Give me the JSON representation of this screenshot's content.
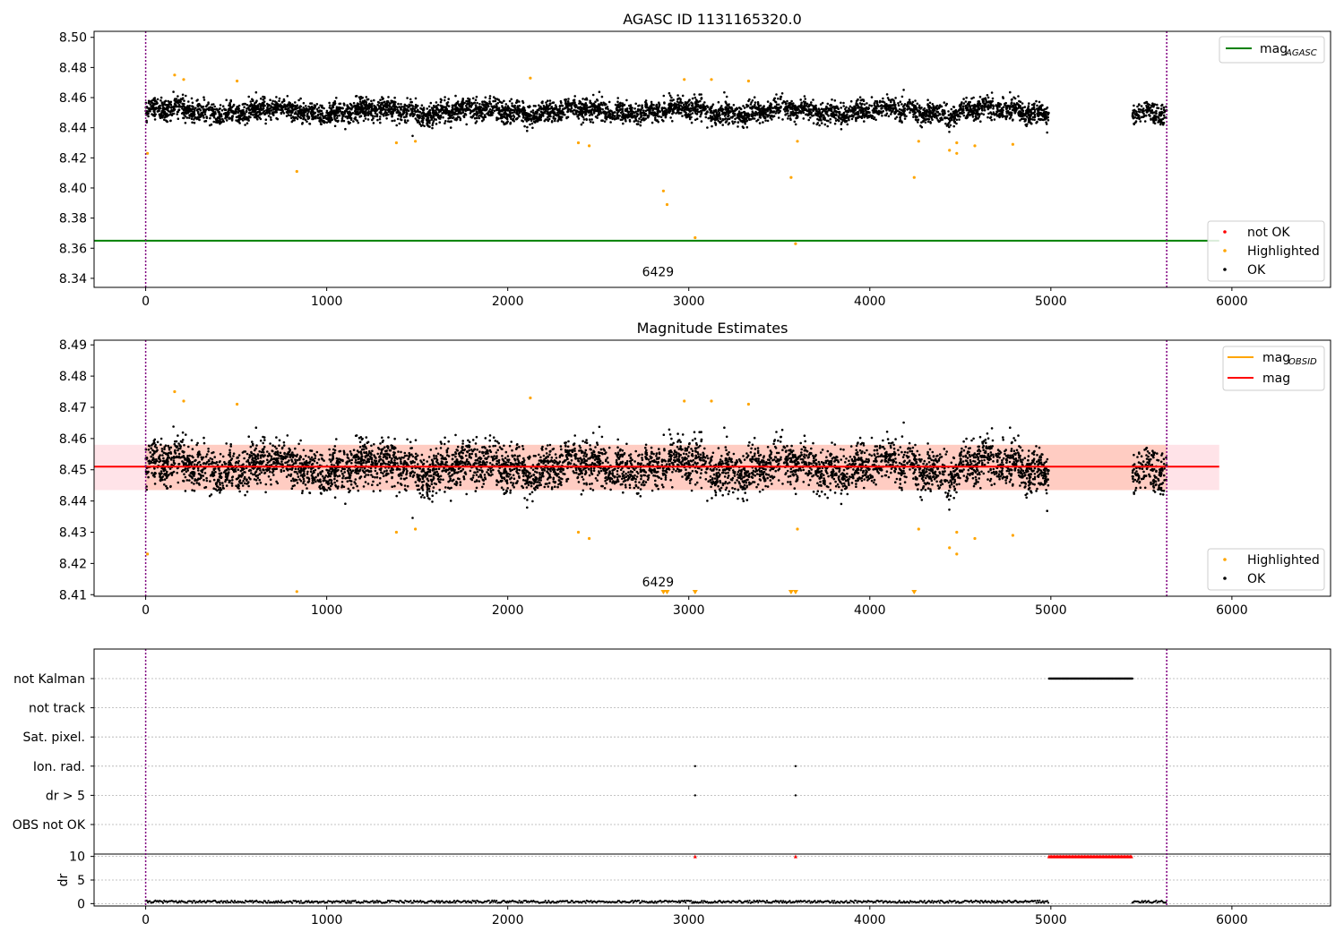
{
  "chart_data": [
    {
      "type": "scatter",
      "title": "AGASC ID 1131165320.0",
      "xlim": [
        -285,
        6545
      ],
      "ylim": [
        8.334,
        8.504
      ],
      "xticks": [
        0,
        1000,
        2000,
        3000,
        4000,
        5000,
        6000
      ],
      "yticks": [
        "8.34",
        "8.36",
        "8.38",
        "8.40",
        "8.42",
        "8.44",
        "8.46",
        "8.48",
        "8.50"
      ],
      "vlines": [
        0,
        5640
      ],
      "agasc_mag": 8.365,
      "annotation": {
        "text": "6429",
        "x": 2830,
        "y": 8.336
      },
      "ok_band": {
        "x_start": 0,
        "x_end": 4990,
        "x2_start": 5450,
        "x2_end": 5640,
        "center": 8.451,
        "spread": 0.009
      },
      "highlighted": [
        [
          10,
          8.423
        ],
        [
          160,
          8.475
        ],
        [
          210,
          8.472
        ],
        [
          505,
          8.471
        ],
        [
          835,
          8.411
        ],
        [
          1385,
          8.43
        ],
        [
          1490,
          8.431
        ],
        [
          2125,
          8.473
        ],
        [
          2390,
          8.43
        ],
        [
          2450,
          8.428
        ],
        [
          2860,
          8.398
        ],
        [
          2880,
          8.389
        ],
        [
          2975,
          8.472
        ],
        [
          3035,
          8.367
        ],
        [
          3125,
          8.472
        ],
        [
          3330,
          8.471
        ],
        [
          3565,
          8.407
        ],
        [
          3590,
          8.363
        ],
        [
          3600,
          8.431
        ],
        [
          4245,
          8.407
        ],
        [
          4270,
          8.431
        ],
        [
          4440,
          8.425
        ],
        [
          4480,
          8.423
        ],
        [
          4480,
          8.43
        ],
        [
          4580,
          8.428
        ],
        [
          4790,
          8.429
        ]
      ],
      "legend": {
        "lines": [
          {
            "label": "mag",
            "sub": "AGASC",
            "color": "#008000"
          }
        ],
        "points": [
          {
            "label": "not OK",
            "color": "#ff0000"
          },
          {
            "label": "Highlighted",
            "color": "#ffa500"
          },
          {
            "label": "OK",
            "color": "#000000"
          }
        ]
      }
    },
    {
      "type": "scatter",
      "title": "Magnitude Estimates",
      "xlim": [
        -285,
        6545
      ],
      "ylim": [
        8.4095,
        8.4915
      ],
      "xticks": [
        0,
        1000,
        2000,
        3000,
        4000,
        5000,
        6000
      ],
      "yticks": [
        "8.41",
        "8.42",
        "8.43",
        "8.44",
        "8.45",
        "8.46",
        "8.47",
        "8.48",
        "8.49"
      ],
      "vlines": [
        0,
        5640
      ],
      "mag": 8.451,
      "mag_band": [
        8.4435,
        8.458
      ],
      "obsid_band": {
        "x_start": 0,
        "x_end": 5640,
        "range": [
          8.4435,
          8.458
        ]
      },
      "annotation": {
        "text": "6429",
        "x": 2830,
        "y": 8.411
      },
      "ok_band": {
        "x_start": 0,
        "x_end": 4990,
        "x2_start": 5450,
        "x2_end": 5640,
        "center": 8.451,
        "spread": 0.009
      },
      "highlighted": [
        [
          10,
          8.423
        ],
        [
          160,
          8.475
        ],
        [
          210,
          8.472
        ],
        [
          505,
          8.471
        ],
        [
          835,
          8.411
        ],
        [
          1385,
          8.43
        ],
        [
          1490,
          8.431
        ],
        [
          2125,
          8.473
        ],
        [
          2390,
          8.43
        ],
        [
          2450,
          8.428
        ],
        [
          2975,
          8.472
        ],
        [
          3125,
          8.472
        ],
        [
          3330,
          8.471
        ],
        [
          3600,
          8.431
        ],
        [
          4270,
          8.431
        ],
        [
          4440,
          8.425
        ],
        [
          4480,
          8.423
        ],
        [
          4480,
          8.43
        ],
        [
          4580,
          8.428
        ],
        [
          4790,
          8.429
        ]
      ],
      "clipped_markers": [
        2860,
        2880,
        3035,
        3565,
        3590,
        4245
      ],
      "legend": {
        "lines": [
          {
            "label": "mag",
            "sub": "OBSID",
            "color": "#ffa500"
          },
          {
            "label": "mag",
            "sub": "",
            "color": "#ff0000"
          }
        ],
        "points": [
          {
            "label": "Highlighted",
            "color": "#ffa500"
          },
          {
            "label": "OK",
            "color": "#000000"
          }
        ]
      }
    },
    {
      "type": "scatter",
      "title": "",
      "xlim": [
        -285,
        6545
      ],
      "xticks": [
        0,
        1000,
        2000,
        3000,
        4000,
        5000,
        6000
      ],
      "vlines": [
        0,
        5640
      ],
      "flag_rows": [
        "not Kalman",
        "not track",
        "Sat. pixel.",
        "Ion. rad.",
        "dr > 5",
        "OBS not OK"
      ],
      "flag_points": {
        "not Kalman": {
          "range": [
            4990,
            5450
          ]
        },
        "Ion. rad.": {
          "x": [
            3035,
            3590
          ]
        },
        "dr > 5": {
          "x": [
            3035,
            3590
          ]
        }
      },
      "dr": {
        "ylabel": "dr",
        "yticks": [
          "0",
          "5",
          "10"
        ],
        "ylim": [
          -0.5,
          10.5
        ],
        "baseline_ranges": [
          [
            0,
            4990
          ],
          [
            5450,
            5640
          ]
        ],
        "clipped_ranges": [
          [
            4990,
            5450
          ]
        ],
        "clipped_points": [
          3035,
          3590
        ],
        "clip_value": 10
      }
    }
  ],
  "colors": {
    "ok": "#000000",
    "highlighted": "#ffa500",
    "not_ok": "#ff0000",
    "agasc_line": "#008000",
    "mag_line": "#ff0000",
    "mag_band": "#ffc0cb",
    "obsid_band": "#ffa07a",
    "vline": "#800080",
    "grid": "#b0b0b0"
  }
}
